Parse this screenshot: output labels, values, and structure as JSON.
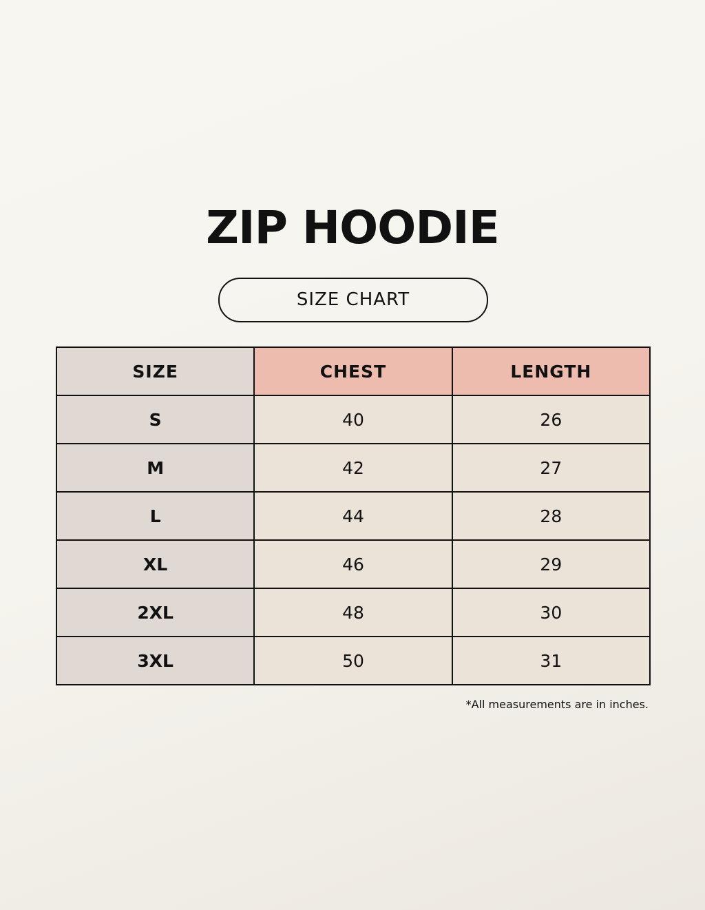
{
  "title": "ZIP HOODIE",
  "subtitle": "SIZE CHART",
  "table": {
    "headers": [
      "SIZE",
      "CHEST",
      "LENGTH"
    ],
    "rows": [
      [
        "S",
        "40",
        "26"
      ],
      [
        "M",
        "42",
        "27"
      ],
      [
        "L",
        "44",
        "28"
      ],
      [
        "XL",
        "46",
        "29"
      ],
      [
        "2XL",
        "48",
        "30"
      ],
      [
        "3XL",
        "50",
        "31"
      ]
    ]
  },
  "note": "*All measurements are in inches.",
  "colors": {
    "header_accent": "#eebcae",
    "size_column": "#dfd8d3",
    "cell": "#ebe3d8",
    "background": "#f7f5ef"
  }
}
